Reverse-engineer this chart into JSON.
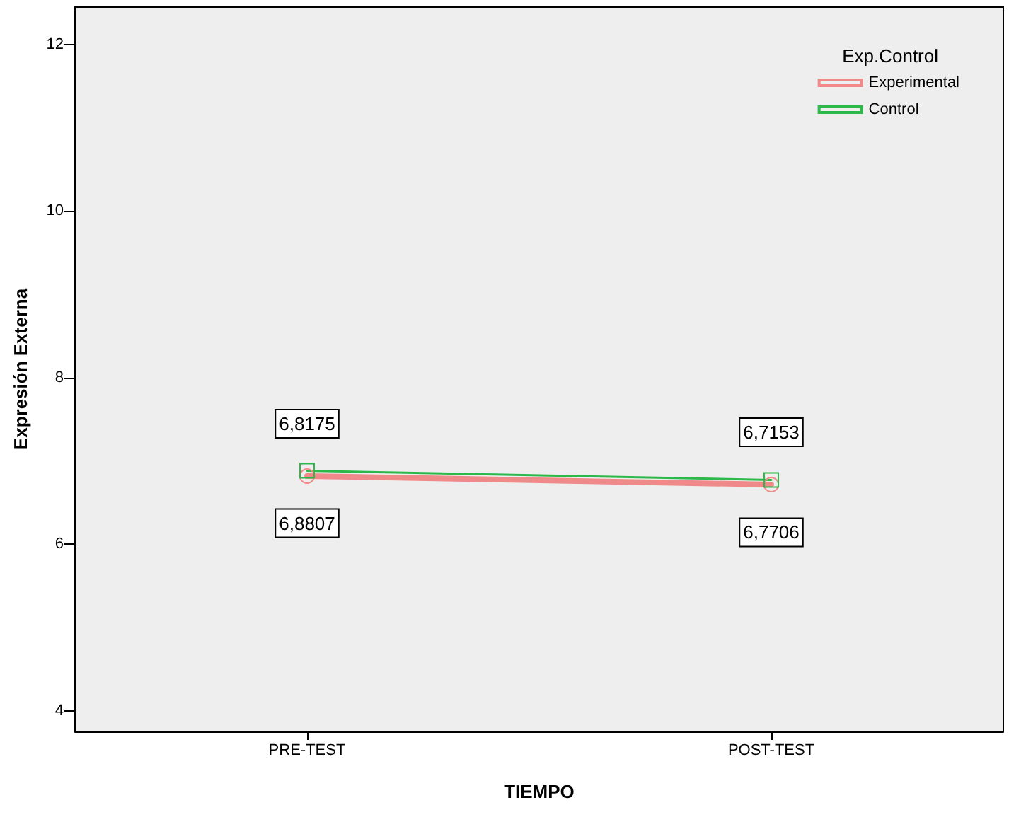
{
  "chart_data": {
    "type": "line",
    "xlabel": "TIEMPO",
    "ylabel": "Expresión Externa",
    "legend_title": "Exp.Control",
    "categories": [
      "PRE-TEST",
      "POST-TEST"
    ],
    "series": [
      {
        "name": "Experimental",
        "color": "#f08a8a",
        "values": [
          6.8175,
          6.7153
        ],
        "value_labels": [
          "6,8175",
          "6,7153"
        ],
        "marker": "circle"
      },
      {
        "name": "Control",
        "color": "#2db84a",
        "values": [
          6.8807,
          6.7706
        ],
        "value_labels": [
          "6,8807",
          "6,7706"
        ],
        "marker": "square"
      }
    ],
    "ylim": [
      3.75,
      12.45
    ],
    "yticks": [
      4,
      6,
      8,
      10,
      12
    ],
    "grid": false,
    "legend": "top right",
    "line_style": "solid"
  }
}
